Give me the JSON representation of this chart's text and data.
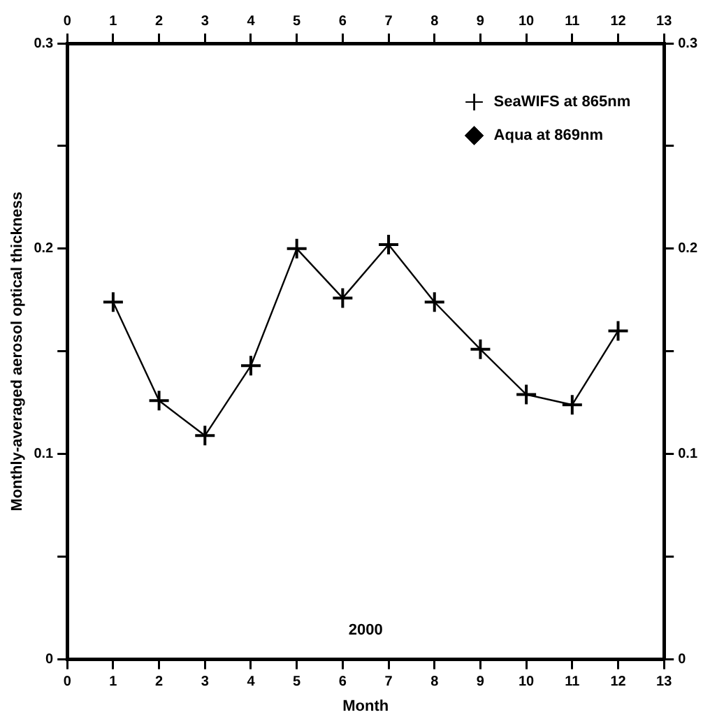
{
  "chart_data": {
    "type": "line",
    "xlabel": "Month",
    "ylabel": "Monthly-averaged aerosol optical thickness",
    "x": [
      1,
      2,
      3,
      4,
      5,
      6,
      7,
      8,
      9,
      10,
      11,
      12
    ],
    "series": [
      {
        "name": "SeaWIFS at 865nm",
        "color": "#000000",
        "marker": "cross",
        "values": [
          0.174,
          0.126,
          0.109,
          0.143,
          0.2,
          0.176,
          0.202,
          0.174,
          0.151,
          0.129,
          0.124,
          0.16
        ]
      },
      {
        "name": "Aqua at 869nm",
        "color": "#000000",
        "marker": "diamond",
        "values": [
          null,
          null,
          null,
          null,
          null,
          null,
          null,
          null,
          null,
          null,
          null,
          null
        ]
      }
    ],
    "xlim": [
      0,
      13
    ],
    "xticks": [
      0,
      1,
      2,
      3,
      4,
      5,
      6,
      7,
      8,
      9,
      10,
      11,
      12,
      13
    ],
    "x2lim": [
      0,
      13
    ],
    "x2ticks": [
      0,
      1,
      2,
      3,
      4,
      5,
      6,
      7,
      8,
      9,
      10,
      11,
      12,
      13
    ],
    "ylim": [
      0,
      0.3
    ],
    "yticks": [
      0,
      {
        "value": 0.05,
        "label": null
      },
      0.1,
      {
        "value": 0.15,
        "label": null
      },
      0.2,
      {
        "value": 0.25,
        "label": null
      },
      0.3
    ],
    "y2lim": [
      0,
      0.3
    ],
    "y2ticks": [
      0,
      {
        "value": 0.05,
        "label": null
      },
      0.1,
      {
        "value": 0.15,
        "label": null
      },
      0.2,
      {
        "value": 0.25,
        "label": null
      },
      0.3
    ],
    "annotations": [
      "2000"
    ],
    "legend": "top right",
    "grid": false
  }
}
